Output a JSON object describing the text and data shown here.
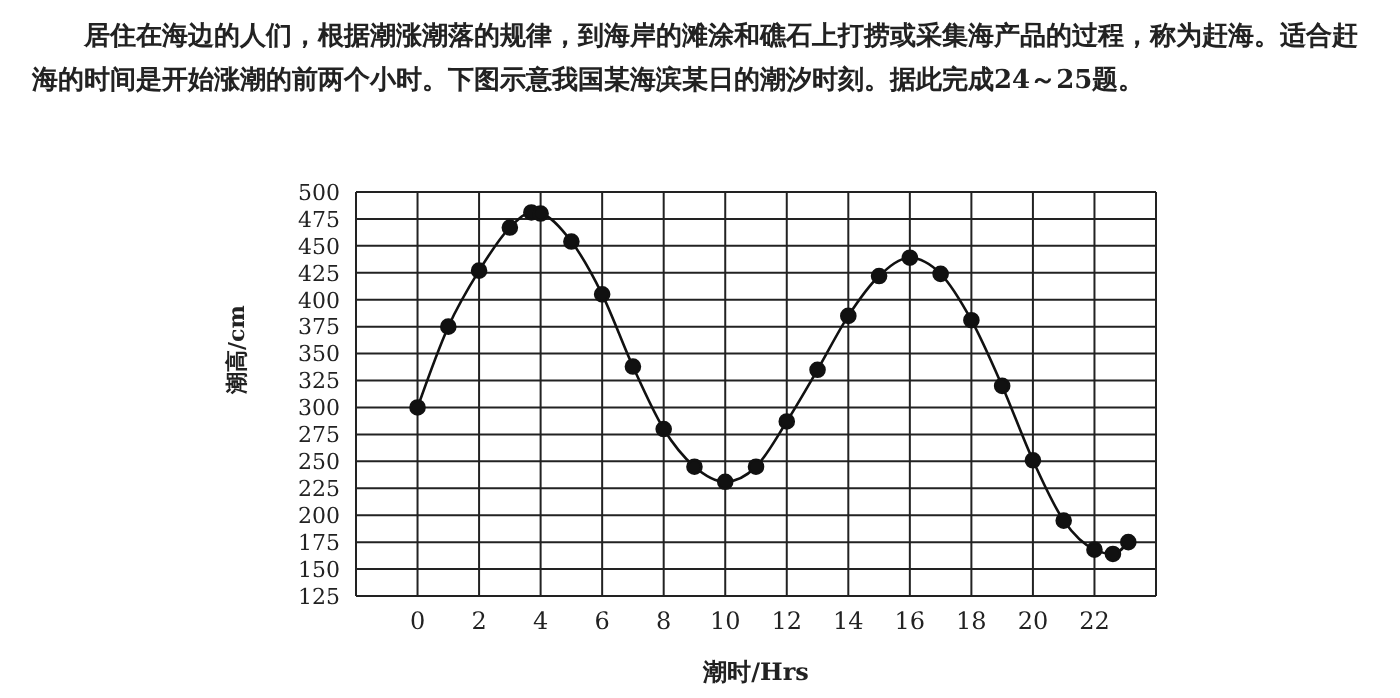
{
  "chart_data": {
    "type": "line",
    "annotations": [
      "居住在海边的人们，根据潮涨潮落的规律，到海岸的滩涂和礁石上打捞或采集海产品的过程，称为赶海。适合赶海的时间是开始涨潮的前两个小时。下图示意我国某海滨某日的潮汐时刻。据此完成24～25题。"
    ],
    "xlabel": "潮时/Hrs",
    "ylabel": "潮高/cm",
    "x": [
      0,
      1,
      2,
      3,
      3.7,
      4,
      5,
      6,
      7,
      8,
      9,
      10,
      11,
      12,
      13,
      14,
      15,
      16,
      17,
      18,
      19,
      20,
      21,
      22,
      22.6,
      23.1
    ],
    "series": [
      {
        "color": "#111111",
        "values": [
          300,
          375,
          427,
          467,
          481,
          480,
          454,
          405,
          338,
          280,
          245,
          231,
          245,
          287,
          335,
          385,
          422,
          439,
          424,
          381,
          320,
          251,
          195,
          168,
          164,
          175
        ]
      }
    ],
    "xlim": [
      -2,
      24
    ],
    "xticks": [
      0,
      2,
      4,
      6,
      8,
      10,
      12,
      14,
      16,
      18,
      20,
      22
    ],
    "ylim": [
      125,
      500
    ],
    "yticks": [
      125,
      150,
      175,
      200,
      225,
      250,
      275,
      300,
      325,
      350,
      375,
      400,
      425,
      450,
      475,
      500
    ],
    "grid": true,
    "marker": "circle",
    "line_style": "solid"
  }
}
